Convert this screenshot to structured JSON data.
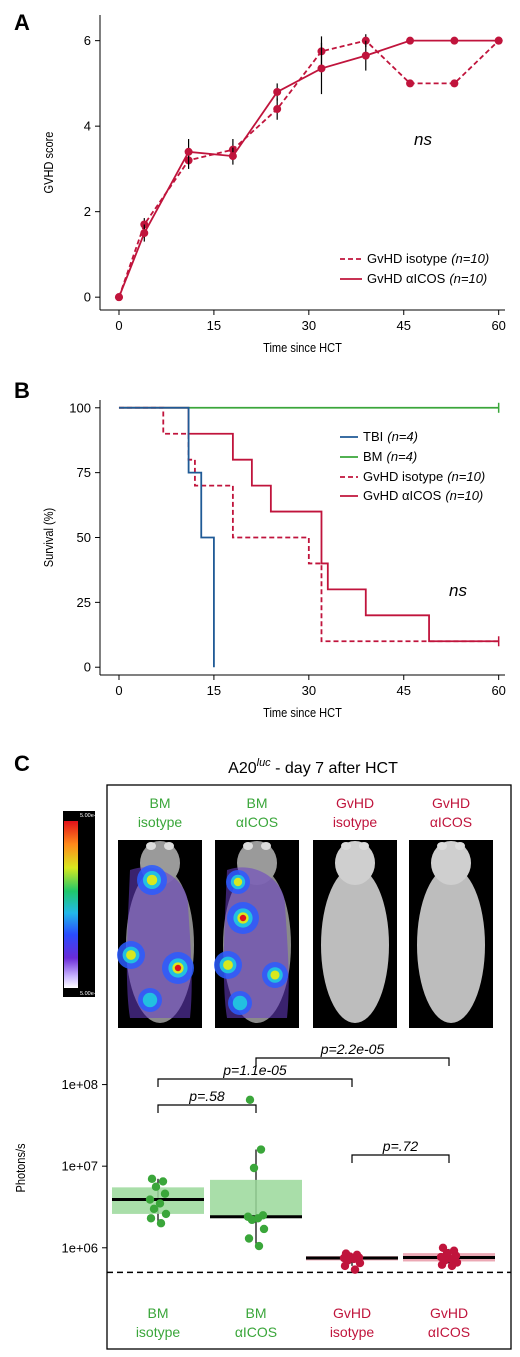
{
  "colors": {
    "gvhd": "#c0143c",
    "bm": "#3aa63a",
    "tbi": "#1f5a96",
    "bm_box": "#9ad89a",
    "gvhd_box": "#e89aa8",
    "text": "#000000"
  },
  "panels": {
    "A": {
      "letter": "A"
    },
    "B": {
      "letter": "B"
    },
    "C": {
      "letter": "C"
    }
  },
  "chart_data": [
    {
      "type": "line",
      "panel": "A",
      "xlabel": "Time since HCT",
      "ylabel": "GVHD score",
      "xlim": [
        -3,
        61
      ],
      "ylim": [
        -0.3,
        6.6
      ],
      "xticks": [
        0,
        15,
        30,
        45,
        60
      ],
      "yticks": [
        0,
        2,
        4,
        6
      ],
      "annotation": "ns",
      "legend_position": "bottom-right",
      "series": [
        {
          "name": "GvHD isotype",
          "n_label": "(n=10)",
          "style": "dashed",
          "x": [
            0,
            4,
            11,
            18,
            25,
            32,
            39,
            46,
            53,
            60
          ],
          "y": [
            0,
            1.7,
            3.2,
            3.45,
            4.4,
            5.75,
            6.0,
            5.0,
            5.0,
            6.0
          ],
          "err": [
            0,
            0.15,
            0.2,
            0.25,
            0.25,
            0.35,
            0.15,
            0,
            0,
            0
          ]
        },
        {
          "name": "GvHD αICOS",
          "n_label": "(n=10)",
          "style": "solid",
          "x": [
            0,
            4,
            11,
            18,
            25,
            32,
            39,
            46,
            53,
            60
          ],
          "y": [
            0,
            1.5,
            3.4,
            3.3,
            4.8,
            5.35,
            5.65,
            6.0,
            6.0,
            6.0
          ],
          "err": [
            0,
            0.2,
            0.3,
            0.2,
            0.2,
            0.6,
            0.35,
            0,
            0,
            0
          ]
        }
      ]
    },
    {
      "type": "line",
      "panel": "B",
      "subtype": "step",
      "xlabel": "Time since HCT",
      "ylabel": "Survival (%)",
      "xlim": [
        -3,
        61
      ],
      "ylim": [
        -3,
        103
      ],
      "xticks": [
        0,
        15,
        30,
        45,
        60
      ],
      "yticks": [
        0,
        25,
        50,
        75,
        100
      ],
      "annotation": "ns",
      "legend_position": "top-right",
      "series": [
        {
          "name": "TBI",
          "n_label": "(n=4)",
          "style": "solid",
          "color_key": "tbi",
          "steps": [
            [
              0,
              100
            ],
            [
              11,
              75
            ],
            [
              13,
              50
            ],
            [
              15,
              0
            ]
          ],
          "end_x": 15,
          "censor": []
        },
        {
          "name": "BM",
          "n_label": "(n=4)",
          "style": "solid",
          "color_key": "bm",
          "steps": [
            [
              0,
              100
            ]
          ],
          "end_x": 60,
          "censor": [
            60
          ]
        },
        {
          "name": "GvHD isotype",
          "n_label": "(n=10)",
          "style": "dashed",
          "color_key": "gvhd",
          "steps": [
            [
              0,
              100
            ],
            [
              7,
              90
            ],
            [
              11,
              80
            ],
            [
              12,
              70
            ],
            [
              18,
              50
            ],
            [
              30,
              40
            ],
            [
              32,
              10
            ]
          ],
          "end_x": 60,
          "censor": []
        },
        {
          "name": "GvHD αICOS",
          "n_label": "(n=10)",
          "style": "solid",
          "color_key": "gvhd",
          "steps": [
            [
              0,
              100
            ],
            [
              11,
              90
            ],
            [
              18,
              80
            ],
            [
              21,
              70
            ],
            [
              24,
              60
            ],
            [
              32,
              40
            ],
            [
              33,
              30
            ],
            [
              39,
              20
            ],
            [
              49,
              10
            ]
          ],
          "end_x": 60,
          "censor": [
            60
          ]
        }
      ]
    },
    {
      "type": "box",
      "panel": "C",
      "title_main": "A20",
      "title_sup": "luc",
      "title_rest": " - day 7 after HCT",
      "ylabel": "Photons/s",
      "yscale": "log",
      "ylim": [
        350000,
        200000000
      ],
      "yticks": [
        {
          "value": 1000000,
          "label": "1e+06"
        },
        {
          "value": 10000000,
          "label": "1e+07"
        },
        {
          "value": 100000000,
          "label": "1e+08"
        }
      ],
      "threshold": 500000,
      "colorbar": {
        "top_label": "5.00e+5",
        "bottom_label": "5.00e+3"
      },
      "groups": [
        {
          "line1": "BM",
          "line2": "isotype",
          "color_key": "bm",
          "box_key": "bm_box",
          "q1": 2600000,
          "median": 3900000,
          "q3": 5500000,
          "wlo": 2000000,
          "whi": 7000000,
          "points": [
            7000000,
            6500000,
            5600000,
            4600000,
            3900000,
            3500000,
            3000000,
            2600000,
            2300000,
            2000000
          ]
        },
        {
          "line1": "BM",
          "line2": "αICOS",
          "color_key": "bm",
          "box_key": "bm_box",
          "q1": 2300000,
          "median": 2400000,
          "q3": 6800000,
          "wlo": 1000000,
          "whi": 16000000,
          "points": [
            65000000,
            16000000,
            9500000,
            2500000,
            2400000,
            2300000,
            2200000,
            1700000,
            1300000,
            1050000
          ]
        },
        {
          "line1": "GvHD",
          "line2": "isotype",
          "color_key": "gvhd",
          "box_key": "gvhd_box",
          "q1": 700000,
          "median": 750000,
          "q3": 790000,
          "wlo": 600000,
          "whi": 830000,
          "points": [
            850000,
            820000,
            780000,
            760000,
            750000,
            730000,
            700000,
            650000,
            600000,
            540000
          ]
        },
        {
          "line1": "GvHD",
          "line2": "αICOS",
          "color_key": "gvhd",
          "box_key": "gvhd_box",
          "q1": 680000,
          "median": 760000,
          "q3": 860000,
          "wlo": 600000,
          "whi": 970000,
          "points": [
            1000000,
            920000,
            860000,
            800000,
            770000,
            740000,
            700000,
            660000,
            620000,
            600000
          ]
        }
      ],
      "comparisons": [
        {
          "from": 2,
          "to": 4,
          "label": "p=2.2e-05"
        },
        {
          "from": 1,
          "to": 3,
          "label": "p=1.1e-05"
        },
        {
          "from": 1,
          "to": 2,
          "label": "p=.58"
        },
        {
          "from": 3,
          "to": 4,
          "label": "p=.72"
        }
      ]
    }
  ]
}
